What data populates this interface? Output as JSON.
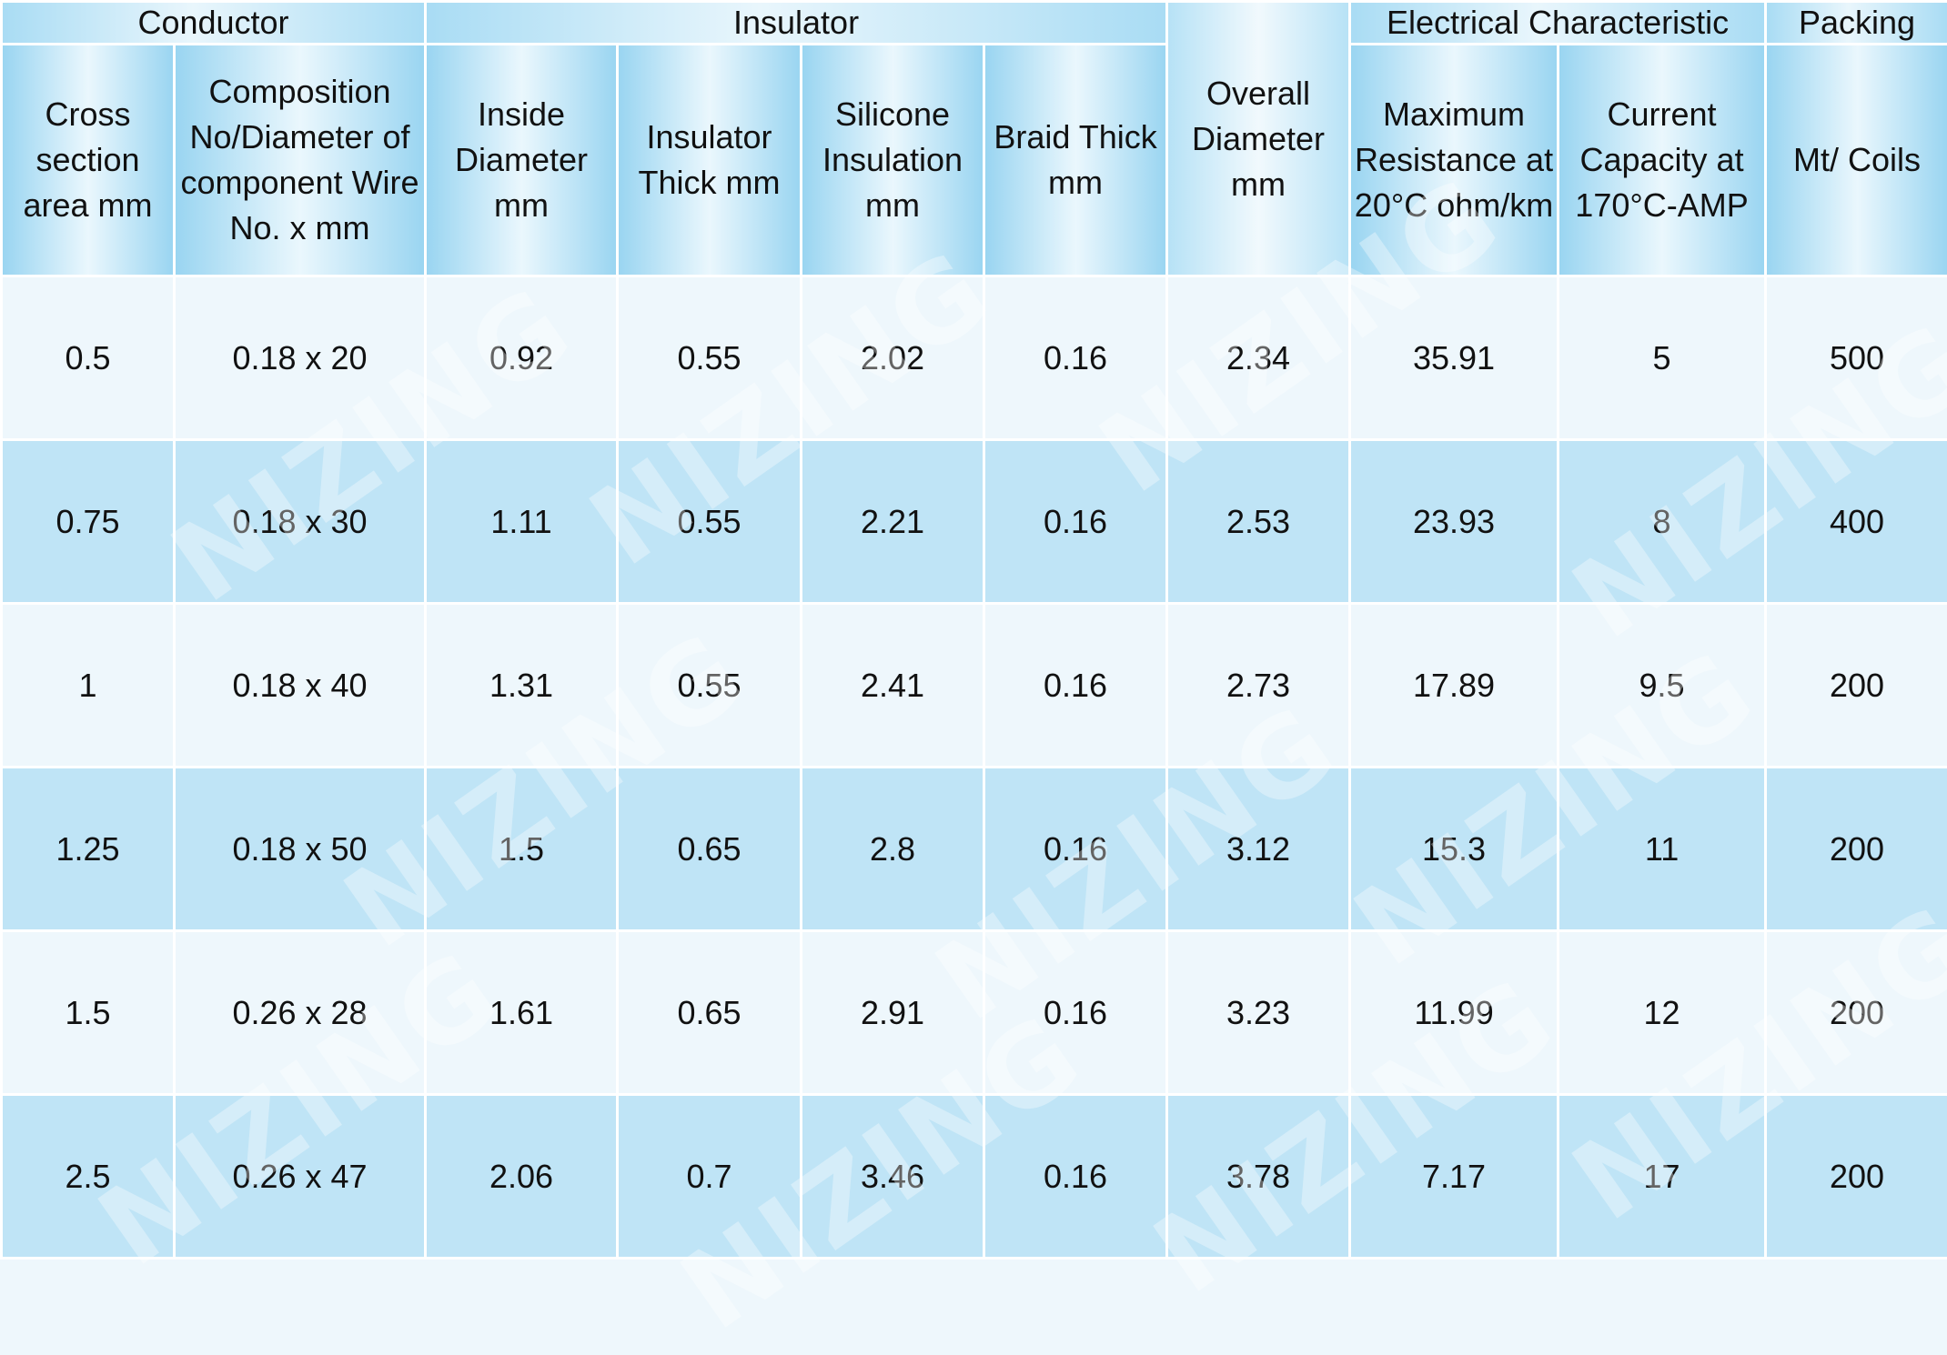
{
  "groups": {
    "conductor": "Conductor",
    "insulator": "Insulator",
    "electrical": "Electrical Characteristic",
    "packing": "Packing"
  },
  "columns": [
    "Cross section area mm",
    "Composition No/Diameter of component Wire No. x mm",
    "Inside Diameter mm",
    "Insulator Thick mm",
    "Silicone Insulation mm",
    "Braid Thick mm",
    "Overall Diameter mm",
    "Maximum Resistance at 20°C ohm/km",
    "Current Capacity at 170°C-AMP",
    "Mt/ Coils"
  ],
  "rows": [
    [
      "0.5",
      "0.18 x 20",
      "0.92",
      "0.55",
      "2.02",
      "0.16",
      "2.34",
      "35.91",
      "5",
      "500"
    ],
    [
      "0.75",
      "0.18 x 30",
      "1.11",
      "0.55",
      "2.21",
      "0.16",
      "2.53",
      "23.93",
      "8",
      "400"
    ],
    [
      "1",
      "0.18 x 40",
      "1.31",
      "0.55",
      "2.41",
      "0.16",
      "2.73",
      "17.89",
      "9.5",
      "200"
    ],
    [
      "1.25",
      "0.18 x 50",
      "1.5",
      "0.65",
      "2.8",
      "0.16",
      "3.12",
      "15.3",
      "11",
      "200"
    ],
    [
      "1.5",
      "0.26 x 28",
      "1.61",
      "0.65",
      "2.91",
      "0.16",
      "3.23",
      "11.99",
      "12",
      "200"
    ],
    [
      "2.5",
      "0.26 x 47",
      "2.06",
      "0.7",
      "3.46",
      "0.16",
      "3.78",
      "7.17",
      "17",
      "200"
    ]
  ],
  "watermark": "NIZING"
}
